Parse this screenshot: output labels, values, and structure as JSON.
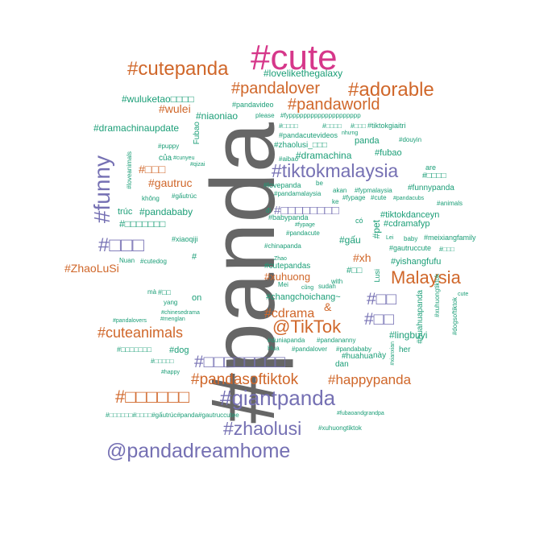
{
  "colors": {
    "orange": "#d0672a",
    "purple": "#7570b3",
    "green": "#1b9e77",
    "gray": "#666666",
    "pink": "#d6378a"
  },
  "words": [
    {
      "text": "#panda",
      "color": "gray"
    },
    {
      "text": "#cute",
      "color": "pink"
    },
    {
      "text": "#cutepanda",
      "color": "orange"
    },
    {
      "text": "#pandalover",
      "color": "orange"
    },
    {
      "text": "#adorable",
      "color": "orange"
    },
    {
      "text": "#lovelikethegalaxy",
      "color": "green"
    },
    {
      "text": "#pandaworld",
      "color": "orange"
    },
    {
      "text": "#wuluketao□□□□",
      "color": "green"
    },
    {
      "text": "#wulei",
      "color": "orange"
    },
    {
      "text": "#pandavideo",
      "color": "green"
    },
    {
      "text": "#niaoniao",
      "color": "green"
    },
    {
      "text": "please",
      "color": "green"
    },
    {
      "text": "#fypppppppppppppppppppp",
      "color": "green"
    },
    {
      "text": "#dramachinaupdate",
      "color": "green"
    },
    {
      "text": "Fubao",
      "color": "green"
    },
    {
      "text": "#□□□□",
      "color": "green"
    },
    {
      "text": "#□□□□",
      "color": "green"
    },
    {
      "text": "#□□□",
      "color": "green"
    },
    {
      "text": "#tiktokgiaitri",
      "color": "green"
    },
    {
      "text": "#pandacutevideos",
      "color": "green"
    },
    {
      "text": "nhưng",
      "color": "green"
    },
    {
      "text": "#zhaolusi_□□□",
      "color": "green"
    },
    {
      "text": "panda",
      "color": "green"
    },
    {
      "text": "#douyin",
      "color": "green"
    },
    {
      "text": "#dramachina",
      "color": "green"
    },
    {
      "text": "#fubao",
      "color": "green"
    },
    {
      "text": "#puppy",
      "color": "green"
    },
    {
      "text": "#cunyeu",
      "color": "green"
    },
    {
      "text": "#qizai",
      "color": "green"
    },
    {
      "text": "#aibao",
      "color": "green"
    },
    {
      "text": "của",
      "color": "green"
    },
    {
      "text": "#tiktokmalaysia",
      "color": "purple"
    },
    {
      "text": "are",
      "color": "green"
    },
    {
      "text": "#□□□□",
      "color": "green"
    },
    {
      "text": "#funny",
      "color": "purple"
    },
    {
      "text": "#loveanimals",
      "color": "green"
    },
    {
      "text": "#□□□",
      "color": "orange"
    },
    {
      "text": "#gautruc",
      "color": "orange"
    },
    {
      "text": "#lovepanda",
      "color": "green"
    },
    {
      "text": "be",
      "color": "green"
    },
    {
      "text": "#pandamalaysia",
      "color": "green"
    },
    {
      "text": "#funnypanda",
      "color": "green"
    },
    {
      "text": "akan",
      "color": "green"
    },
    {
      "text": "#fypmalaysia",
      "color": "green"
    },
    {
      "text": "không",
      "color": "green"
    },
    {
      "text": "#gấutrúc",
      "color": "green"
    },
    {
      "text": "#fypage",
      "color": "green"
    },
    {
      "text": "#cute",
      "color": "green"
    },
    {
      "text": "#pandacubs",
      "color": "green"
    },
    {
      "text": "ke",
      "color": "green"
    },
    {
      "text": "#animals",
      "color": "green"
    },
    {
      "text": "trúc",
      "color": "green"
    },
    {
      "text": "#pandababy",
      "color": "green"
    },
    {
      "text": "#□□□□□□□□",
      "color": "purple"
    },
    {
      "text": "đi",
      "color": "green"
    },
    {
      "text": "#babypanda",
      "color": "green"
    },
    {
      "text": "#tiktokdanceyn",
      "color": "green"
    },
    {
      "text": "#□□□□□□□",
      "color": "green"
    },
    {
      "text": "#□□□",
      "color": "purple"
    },
    {
      "text": "#xiaoqiji",
      "color": "green"
    },
    {
      "text": "#fypage",
      "color": "green"
    },
    {
      "text": "#pandacute",
      "color": "green"
    },
    {
      "text": "có",
      "color": "green"
    },
    {
      "text": "#cdramafyp",
      "color": "green"
    },
    {
      "text": "#meixiangfamily",
      "color": "green"
    },
    {
      "text": "#gấu",
      "color": "green"
    },
    {
      "text": "#pet",
      "color": "green"
    },
    {
      "text": "baby",
      "color": "green"
    },
    {
      "text": "Lei",
      "color": "green"
    },
    {
      "text": "#gautruccute",
      "color": "green"
    },
    {
      "text": "#□□□",
      "color": "green"
    },
    {
      "text": "#ZhaoLuSi",
      "color": "orange"
    },
    {
      "text": "Nuan",
      "color": "green"
    },
    {
      "text": "#cutedog",
      "color": "green"
    },
    {
      "text": "#",
      "color": "green"
    },
    {
      "text": "#xh",
      "color": "orange"
    },
    {
      "text": "#chinapanda",
      "color": "green"
    },
    {
      "text": "#cutepandas",
      "color": "green"
    },
    {
      "text": "Zhao",
      "color": "green"
    },
    {
      "text": "#yishangfufu",
      "color": "green"
    },
    {
      "text": "#xuhuong",
      "color": "orange"
    },
    {
      "text": "Malaysia",
      "color": "orange"
    },
    {
      "text": "#□□",
      "color": "green"
    },
    {
      "text": "Lusi",
      "color": "green"
    },
    {
      "text": "Mei",
      "color": "green"
    },
    {
      "text": "cũng",
      "color": "green"
    },
    {
      "text": "sudah",
      "color": "green"
    },
    {
      "text": "with",
      "color": "green"
    },
    {
      "text": "#□□",
      "color": "green"
    },
    {
      "text": "mà",
      "color": "green"
    },
    {
      "text": "yang",
      "color": "green"
    },
    {
      "text": "on",
      "color": "green"
    },
    {
      "text": "#changchoichang~",
      "color": "green"
    },
    {
      "text": "#□□",
      "color": "purple"
    },
    {
      "text": "#xuhuongtiktok",
      "color": "green"
    },
    {
      "text": "cute",
      "color": "green"
    },
    {
      "text": "#chinesedrama",
      "color": "green"
    },
    {
      "text": "#cdrama",
      "color": "orange"
    },
    {
      "text": "&",
      "color": "orange"
    },
    {
      "text": "#□□",
      "color": "purple"
    },
    {
      "text": "#huahuapanda",
      "color": "green"
    },
    {
      "text": "#dogsoftiktok",
      "color": "green"
    },
    {
      "text": "#pandalovers",
      "color": "green"
    },
    {
      "text": "#menglan",
      "color": "green"
    },
    {
      "text": "#cuteanimals",
      "color": "orange"
    },
    {
      "text": "@TikTok",
      "color": "orange"
    },
    {
      "text": "#lingbuyi",
      "color": "green"
    },
    {
      "text": "#□□□□□□□",
      "color": "green"
    },
    {
      "text": "#dog",
      "color": "green"
    },
    {
      "text": "#duniapanda",
      "color": "green"
    },
    {
      "text": "#pandananny",
      "color": "green"
    },
    {
      "text": "#xianxian",
      "color": "green"
    },
    {
      "text": "her",
      "color": "green"
    },
    {
      "text": "Hua",
      "color": "green"
    },
    {
      "text": "#pandalover",
      "color": "green"
    },
    {
      "text": "#pandababy",
      "color": "green"
    },
    {
      "text": "#huahua",
      "color": "green"
    },
    {
      "text": "này",
      "color": "green"
    },
    {
      "text": "#□□□□□",
      "color": "green"
    },
    {
      "text": "#□□□□□□□□",
      "color": "purple"
    },
    {
      "text": "dan",
      "color": "green"
    },
    {
      "text": "#happy",
      "color": "green"
    },
    {
      "text": "#pandasoftiktok",
      "color": "orange"
    },
    {
      "text": "#happypanda",
      "color": "orange"
    },
    {
      "text": "#□□□□□□",
      "color": "orange"
    },
    {
      "text": "#giantpanda",
      "color": "purple"
    },
    {
      "text": "#fubaoandgrandpa",
      "color": "green"
    },
    {
      "text": "#□□□□□□#□□□□#gấutrúc#panda#gautruccutee",
      "color": "green"
    },
    {
      "text": "#xuhuongtiktok",
      "color": "green"
    },
    {
      "text": "#zhaolusi",
      "color": "purple"
    },
    {
      "text": "@pandadreamhome",
      "color": "purple"
    }
  ]
}
